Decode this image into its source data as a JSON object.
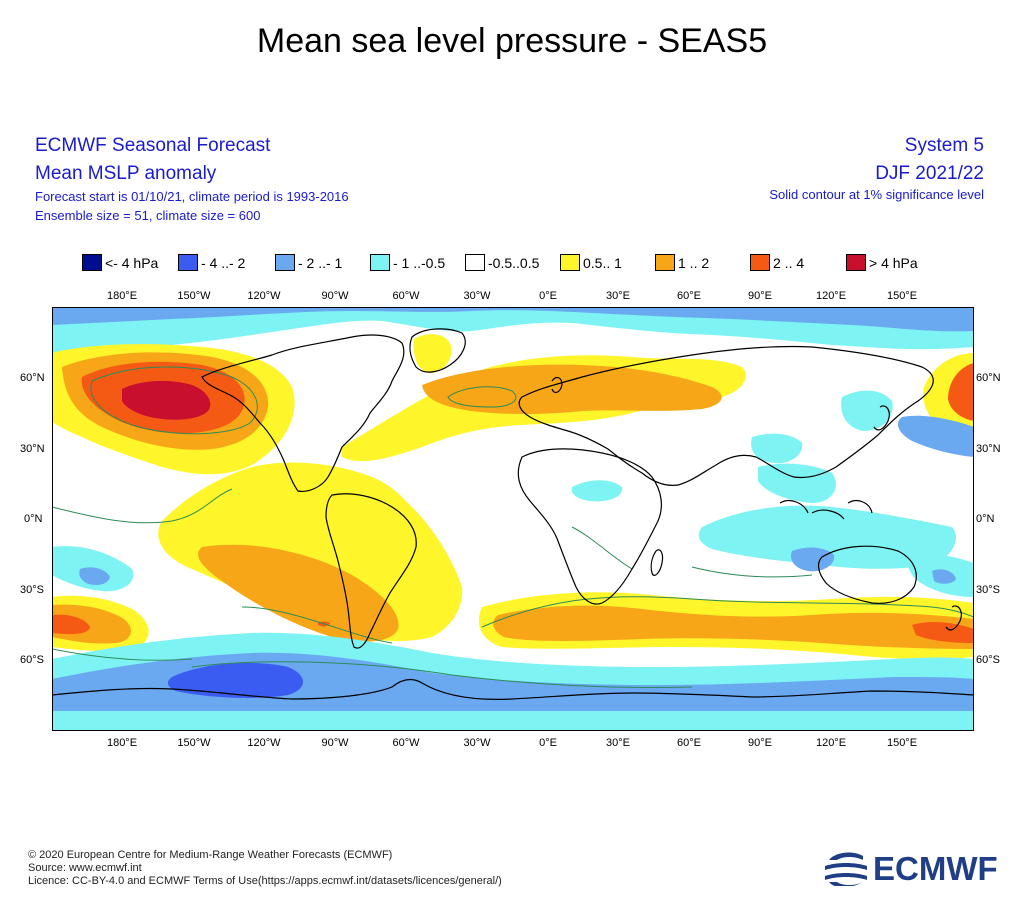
{
  "title": "Mean sea level pressure - SEAS5",
  "header_left": {
    "line1": "ECMWF Seasonal Forecast",
    "line2": "Mean MSLP anomaly",
    "line3": "Forecast start is 01/10/21, climate period is 1993-2016",
    "line4": "Ensemble size = 51, climate size = 600"
  },
  "header_right": {
    "line1": "System 5",
    "line2": "DJF 2021/22",
    "line3": "Solid contour at 1% significance level"
  },
  "legend": [
    {
      "label": "<- 4 hPa",
      "color": "#000d8f"
    },
    {
      "label": "- 4 ..- 2",
      "color": "#3b5cf0"
    },
    {
      "label": "- 2 ..- 1",
      "color": "#6aa9f0"
    },
    {
      "label": "- 1 ..-0.5",
      "color": "#7ef3f3"
    },
    {
      "label": "-0.5..0.5",
      "color": "#ffffff"
    },
    {
      "label": "0.5.. 1",
      "color": "#fff52b"
    },
    {
      "label": "1 .. 2",
      "color": "#f7a617"
    },
    {
      "label": "2 .. 4",
      "color": "#f55a14"
    },
    {
      "label": "> 4 hPa",
      "color": "#c8102e"
    }
  ],
  "lon_labels": [
    "180°E",
    "150°W",
    "120°W",
    "90°W",
    "60°W",
    "30°W",
    "0°E",
    "30°E",
    "60°E",
    "90°E",
    "120°E",
    "150°E"
  ],
  "lat_labels_left": [
    "60°N",
    "30°N",
    "0°N",
    "30°S",
    "60°S"
  ],
  "lat_labels_right": [
    "60°N",
    "30°N",
    "0°N",
    "30°S",
    "60°S"
  ],
  "footer": {
    "line1": "© 2020 European Centre for Medium-Range Weather Forecasts (ECMWF)",
    "line2": "Source: www.ecmwf.int",
    "line3": "Licence: CC-BY-4.0 and ECMWF Terms of Use(https://apps.ecmwf.int/datasets/licences/general/)"
  },
  "logo_text": "ECMWF"
}
